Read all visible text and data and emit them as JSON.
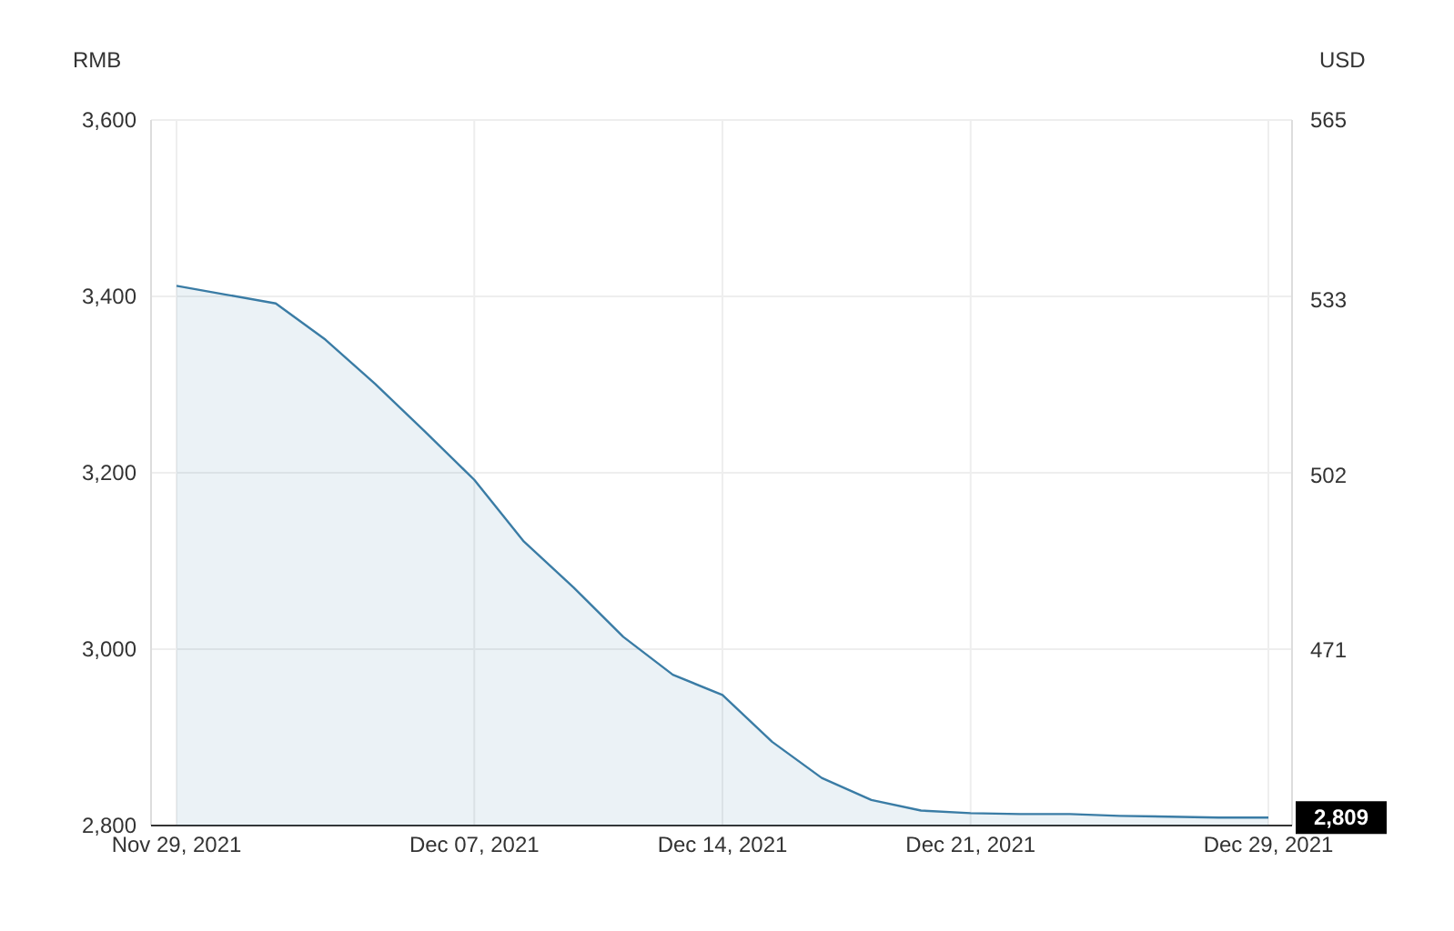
{
  "chart_data": {
    "type": "area",
    "ylabel": "RMB",
    "y2label": "USD",
    "categories": [
      "Nov 29, 2021",
      null,
      null,
      null,
      null,
      null,
      "Dec 07, 2021",
      null,
      null,
      null,
      null,
      "Dec 14, 2021",
      null,
      null,
      null,
      null,
      "Dec 21, 2021",
      null,
      null,
      null,
      null,
      null,
      "Dec 29, 2021"
    ],
    "series": [
      {
        "color": "#3a7ca5",
        "values": [
          3412,
          3402,
          3392,
          3351,
          3301,
          3247,
          3192,
          3122,
          3070,
          3014,
          2971,
          2948,
          2895,
          2854,
          2829,
          2817,
          2814,
          2813,
          2813,
          2811,
          2810,
          2809,
          2809
        ]
      }
    ],
    "ylim": [
      2800,
      3600
    ],
    "yticks": [
      {
        "value": 2800,
        "label": "2,800"
      },
      {
        "value": 3000,
        "label": "3,000"
      },
      {
        "value": 3200,
        "label": "3,200"
      },
      {
        "value": 3400,
        "label": "3,400"
      },
      {
        "value": 3600,
        "label": "3,600"
      }
    ],
    "y2lim": [
      440,
      565
    ],
    "y2ticks": [
      471,
      502,
      533,
      565
    ],
    "annotations": [
      {
        "text": "2,809",
        "x": "Dec 29, 2021",
        "y": 2809
      }
    ],
    "grid": true,
    "marker": "none",
    "line_style": "solid"
  }
}
